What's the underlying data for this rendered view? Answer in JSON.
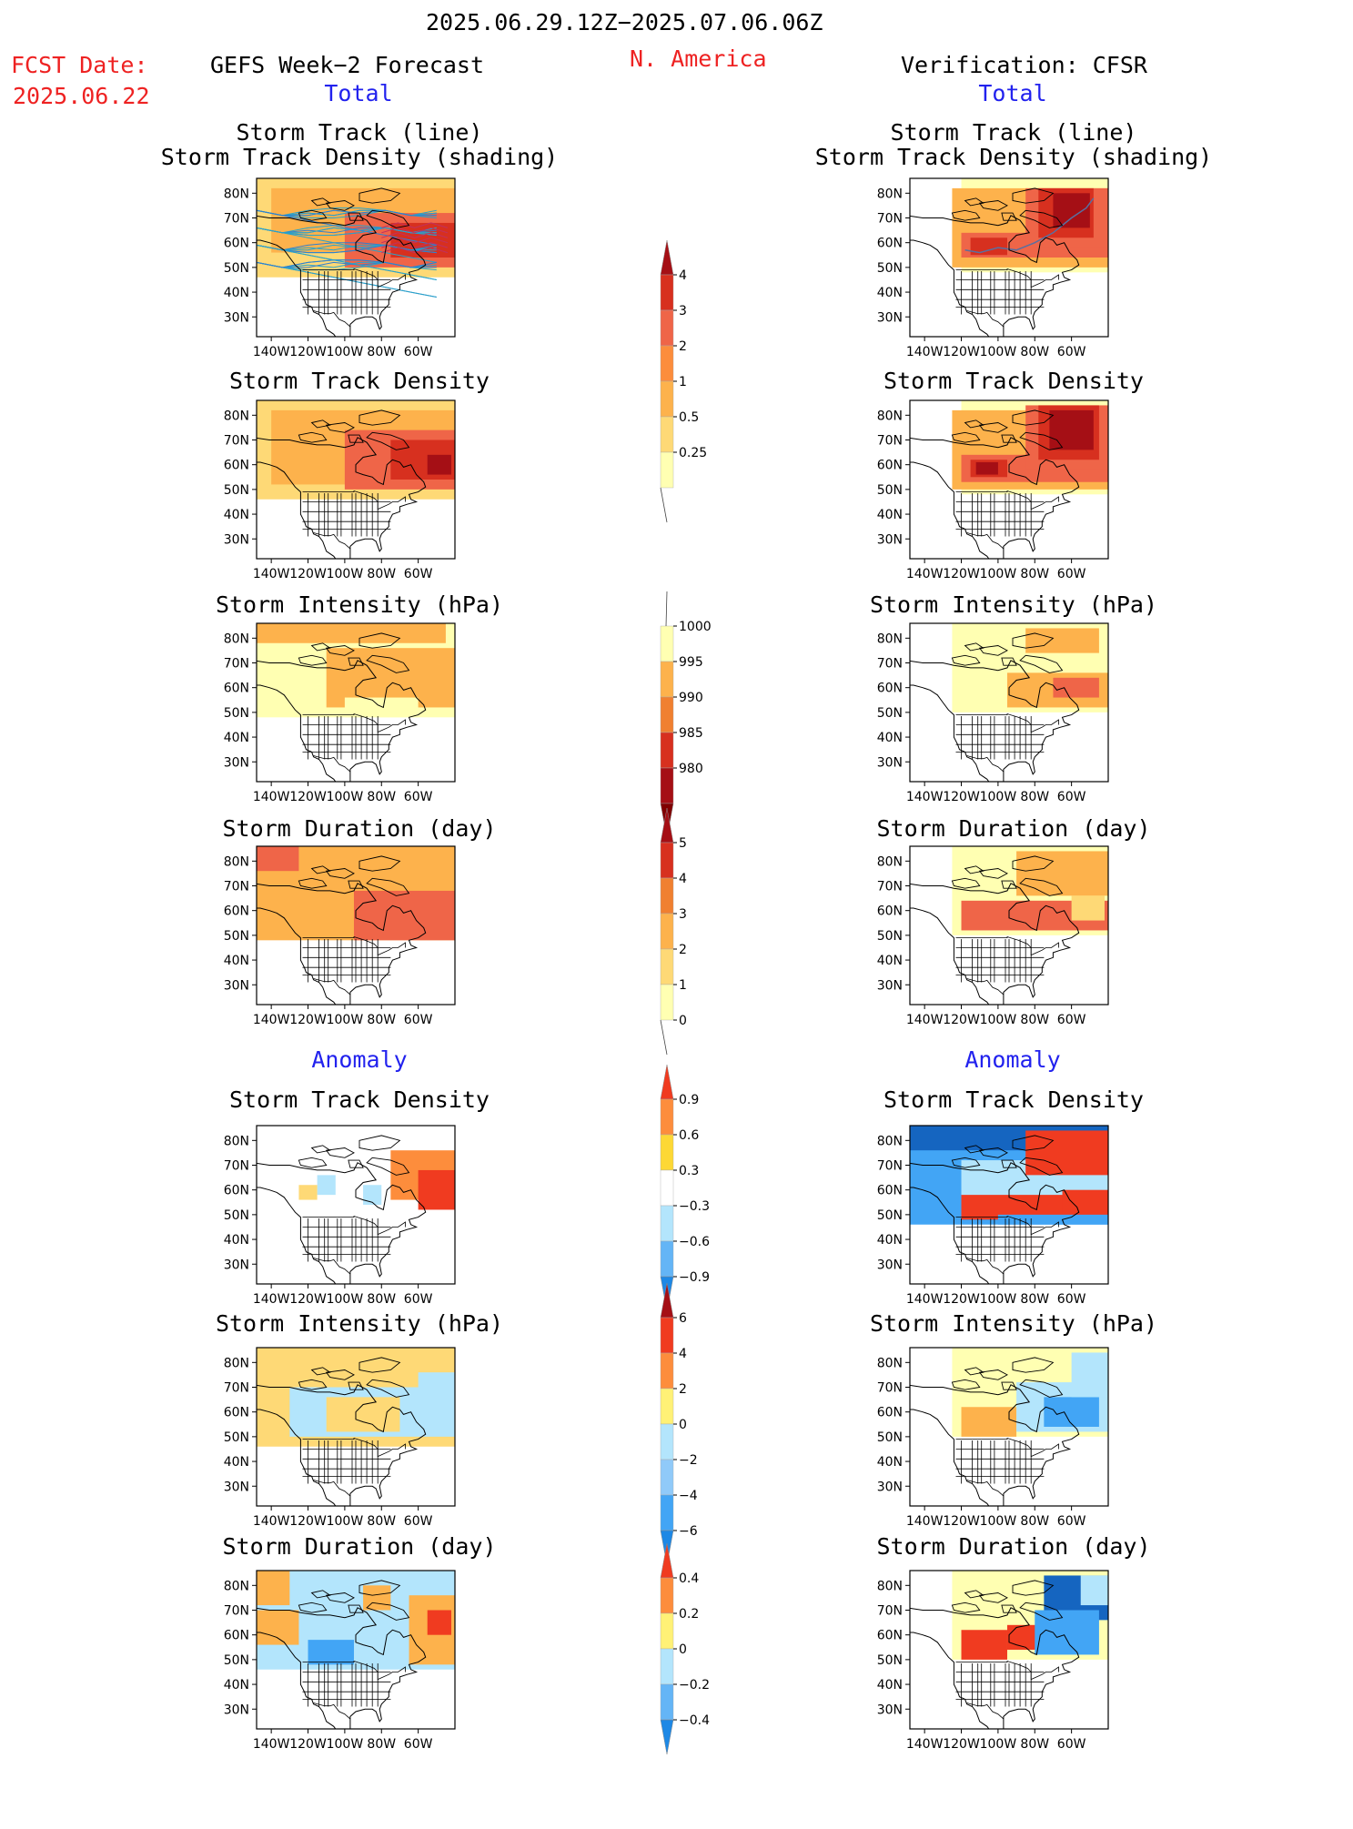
{
  "header": {
    "date_range": "2025.06.29.12Z−2025.07.06.06Z",
    "fcst_label": "FCST Date:",
    "fcst_date": "2025.06.22",
    "left_title": "GEFS Week−2 Forecast",
    "region": "N. America",
    "right_title": "Verification: CFSR",
    "total_left": "Total",
    "total_right": "Total",
    "anomaly_left": "Anomaly",
    "anomaly_right": "Anomaly"
  },
  "axes": {
    "lat_labels": [
      "80N",
      "70N",
      "60N",
      "50N",
      "40N",
      "30N"
    ],
    "lon_labels": [
      "140W",
      "120W",
      "100W",
      "80W",
      "60W"
    ]
  },
  "panels": {
    "r1_title_a": "Storm Track (line)",
    "r1_title_b": "Storm Track Density (shading)",
    "r2_title": "Storm Track Density",
    "r3_title": "Storm Intensity (hPa)",
    "r4_title": "Storm Duration (day)",
    "r5_title": "Storm Track Density",
    "r6_title": "Storm Intensity (hPa)",
    "r7_title": "Storm Duration (day)"
  },
  "colorbars": {
    "density": {
      "labels": [
        "4",
        "3",
        "2",
        "1",
        "0.5",
        "0.25"
      ],
      "colors": [
        "#a50f15",
        "#d7301f",
        "#ef6548",
        "#fc8d3c",
        "#fdb24c",
        "#fed976",
        "#ffffb2"
      ]
    },
    "intensity": {
      "labels": [
        "1000",
        "995",
        "990",
        "985",
        "980"
      ],
      "colors": [
        "#ffffb2",
        "#fdb24c",
        "#f08030",
        "#d7301f",
        "#a50f15",
        "#800000"
      ]
    },
    "duration": {
      "labels": [
        "5",
        "4",
        "3",
        "2",
        "1",
        "0"
      ],
      "colors": [
        "#a50f15",
        "#d7301f",
        "#f08030",
        "#fdb24c",
        "#fed976",
        "#ffffb2"
      ]
    },
    "anom_density": {
      "labels": [
        "0.9",
        "0.6",
        "0.3",
        "−0.3",
        "−0.6",
        "−0.9"
      ],
      "colors": [
        "#f03b20",
        "#fd8d3c",
        "#fdd835",
        "#ffffff",
        "#b3e5fc",
        "#64b5f6",
        "#1e88e5"
      ]
    },
    "anom_intensity": {
      "labels": [
        "6",
        "4",
        "2",
        "0",
        "−2",
        "−4",
        "−6"
      ],
      "colors": [
        "#a50f15",
        "#f03b20",
        "#fd8d3c",
        "#fff176",
        "#b3e5fc",
        "#90caf9",
        "#42a5f5",
        "#1e88e5"
      ]
    },
    "anom_duration": {
      "labels": [
        "0.4",
        "0.2",
        "0",
        "−0.2",
        "−0.4"
      ],
      "colors": [
        "#f03b20",
        "#fd8d3c",
        "#fff176",
        "#b3e5fc",
        "#64b5f6",
        "#1e88e5"
      ]
    }
  },
  "colors": {
    "dark_red": "#a50f15",
    "red": "#d7301f",
    "orange_red": "#ef6548",
    "orange": "#fdb24c",
    "yellow": "#fed976",
    "pale_yellow": "#ffffb2",
    "light_blue": "#b3e5fc",
    "blue": "#42a5f5",
    "dark_blue": "#1565c0"
  }
}
